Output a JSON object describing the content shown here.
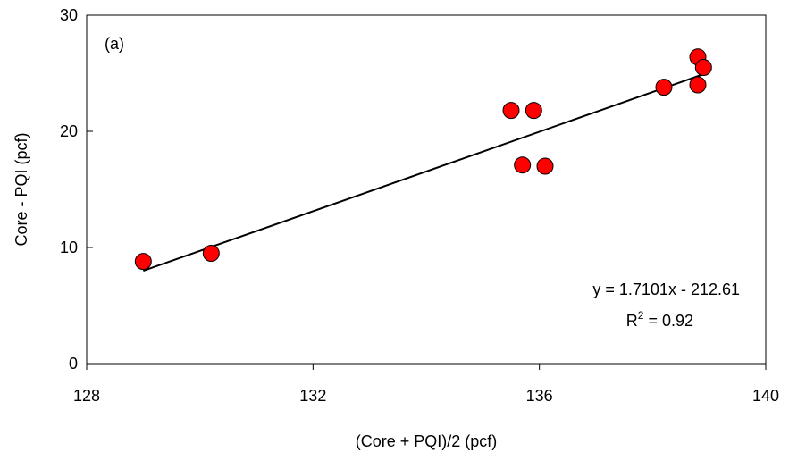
{
  "chart_data": {
    "type": "scatter",
    "panel_label": "(a)",
    "xlabel": "(Core + PQI)/2 (pcf)",
    "ylabel": "Core - PQI (pcf)",
    "xlim": [
      128,
      140
    ],
    "ylim": [
      0,
      30
    ],
    "x_ticks": [
      128,
      132,
      136,
      140
    ],
    "y_ticks": [
      0,
      10,
      20,
      30
    ],
    "grid": false,
    "marker_color": "#ff0000",
    "points": [
      {
        "x": 129.0,
        "y": 8.8
      },
      {
        "x": 130.2,
        "y": 9.5
      },
      {
        "x": 135.5,
        "y": 21.8
      },
      {
        "x": 135.9,
        "y": 21.8
      },
      {
        "x": 135.7,
        "y": 17.1
      },
      {
        "x": 136.1,
        "y": 17.0
      },
      {
        "x": 138.2,
        "y": 23.8
      },
      {
        "x": 138.8,
        "y": 26.4
      },
      {
        "x": 138.9,
        "y": 25.5
      },
      {
        "x": 138.8,
        "y": 24.0
      }
    ],
    "trendline": {
      "slope": 1.7101,
      "intercept": -212.61,
      "x_range": [
        129.0,
        138.9
      ],
      "equation": "y = 1.7101x - 212.61",
      "r2_prefix": "R",
      "r2_sup": "2",
      "r2_value": " = 0.92"
    }
  }
}
